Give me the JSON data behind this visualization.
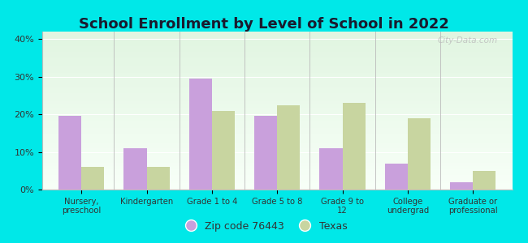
{
  "title": "School Enrollment by Level of School in 2022",
  "categories": [
    "Nursery,\npreschool",
    "Kindergarten",
    "Grade 1 to 4",
    "Grade 5 to 8",
    "Grade 9 to\n12",
    "College\nundergrad",
    "Graduate or\nprofessional"
  ],
  "zip_values": [
    19.5,
    11.0,
    29.5,
    19.5,
    11.0,
    7.0,
    2.0
  ],
  "texas_values": [
    6.0,
    6.0,
    21.0,
    22.5,
    23.0,
    19.0,
    5.0
  ],
  "zip_color": "#c9a0dc",
  "texas_color": "#c8d5a0",
  "background_color": "#00e8e8",
  "ylim": [
    0,
    42
  ],
  "yticks": [
    0,
    10,
    20,
    30,
    40
  ],
  "ytick_labels": [
    "0%",
    "10%",
    "20%",
    "30%",
    "40%"
  ],
  "legend_zip_label": "Zip code 76443",
  "legend_texas_label": "Texas",
  "bar_width": 0.35,
  "title_fontsize": 13,
  "watermark": "City-Data.com"
}
